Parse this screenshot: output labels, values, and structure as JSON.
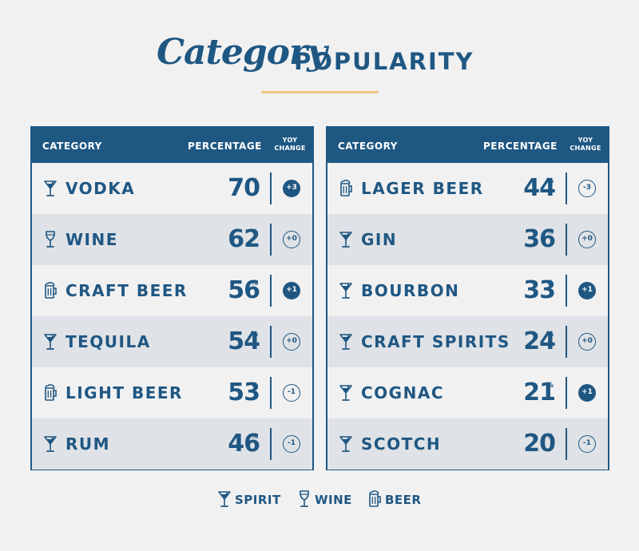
{
  "title": {
    "script": "Category",
    "caps": "POPULARITY"
  },
  "columns": {
    "category": "CATEGORY",
    "percentage": "PERCENTAGE",
    "yoy_line1": "YOY",
    "yoy_line2": "CHANGE"
  },
  "percent_sign": "%",
  "legend": [
    {
      "type": "spirit",
      "label": "SPIRIT"
    },
    {
      "type": "wine",
      "label": "WINE"
    },
    {
      "type": "beer",
      "label": "BEER"
    }
  ],
  "colors": {
    "primary": "#1f5783",
    "accent": "#f0c27f",
    "row_alt": "#dfe2e6",
    "background": "#f1f1f2"
  },
  "chart_data": {
    "type": "table",
    "title": "Category POPULARITY",
    "tables": [
      {
        "rows": [
          {
            "type": "spirit",
            "category": "VODKA",
            "percentage": 70,
            "yoy": "+3",
            "filled": true
          },
          {
            "type": "wine",
            "category": "WINE",
            "percentage": 62,
            "yoy": "+0",
            "filled": false
          },
          {
            "type": "beer",
            "category": "CRAFT BEER",
            "percentage": 56,
            "yoy": "+1",
            "filled": true
          },
          {
            "type": "spirit",
            "category": "TEQUILA",
            "percentage": 54,
            "yoy": "+0",
            "filled": false
          },
          {
            "type": "beer",
            "category": "LIGHT BEER",
            "percentage": 53,
            "yoy": "-1",
            "filled": false
          },
          {
            "type": "spirit",
            "category": "RUM",
            "percentage": 46,
            "yoy": "-1",
            "filled": false
          }
        ]
      },
      {
        "rows": [
          {
            "type": "beer",
            "category": "LAGER BEER",
            "percentage": 44,
            "yoy": "-3",
            "filled": false
          },
          {
            "type": "spirit",
            "category": "GIN",
            "percentage": 36,
            "yoy": "+0",
            "filled": false
          },
          {
            "type": "spirit",
            "category": "BOURBON",
            "percentage": 33,
            "yoy": "+1",
            "filled": true
          },
          {
            "type": "spirit",
            "category": "CRAFT SPIRITS",
            "percentage": 24,
            "yoy": "+0",
            "filled": false
          },
          {
            "type": "spirit",
            "category": "COGNAC",
            "percentage": 21,
            "yoy": "+1",
            "filled": true
          },
          {
            "type": "spirit",
            "category": "SCOTCH",
            "percentage": 20,
            "yoy": "-1",
            "filled": false
          }
        ]
      }
    ]
  }
}
